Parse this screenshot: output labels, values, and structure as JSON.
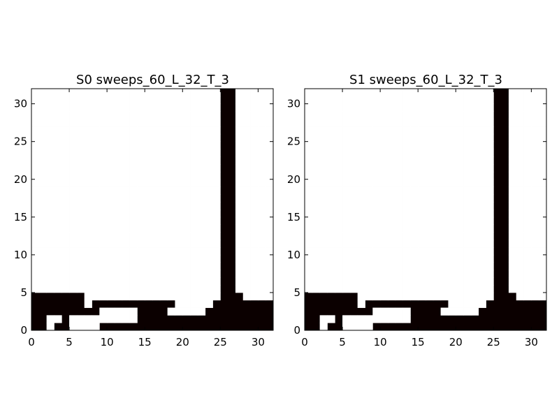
{
  "chart_data": [
    {
      "type": "heatmap",
      "title": "S0 sweeps_60_L_32_T_3",
      "xlabel": "",
      "ylabel": "",
      "xlim": [
        0,
        32
      ],
      "ylim": [
        0,
        32
      ],
      "xticks": [
        "0",
        "5",
        "10",
        "15",
        "20",
        "25",
        "30"
      ],
      "yticks": [
        "0",
        "5",
        "10",
        "15",
        "20",
        "25",
        "30"
      ],
      "colors": {
        "spin_up": "#ffffff",
        "spin_down": "#0b0000"
      },
      "origin": "lower",
      "grid": false,
      "rows": [
        "00100111100000000000000000000000",
        "00110111111111000000000000000000",
        "00000000011111000011111000000000",
        "00000001000000000001111100000000",
        "00000001111111111111111110001111",
        "11111111111111111111111110011111",
        "11111111111111111111111110011111",
        "11111111111111111111111110011111",
        "11111111111111111111111110011111",
        "11111111111111111111111110011111",
        "11111111111111111111111110011111",
        "11111111111111111111111110011111",
        "11111111111111111111111110011111",
        "11111111111111111111111110011111",
        "11111111111111111111111110011111",
        "11111111111111111111111110011111",
        "11111111111111111111111110011111",
        "11111111111111111111111110011111",
        "11111111111111111111111110011111",
        "11111111111111111111111110011111",
        "11111111111111111111111110011111",
        "11111111111111111111111110011111",
        "11111111111111111111111110011111",
        "11111111111111111111111110011111",
        "11111111111111111111111110011111",
        "11111111111111111111111110011111",
        "11111111111111111111111110011111",
        "11111111111111111111111110011111",
        "11111111111111111111111110011111",
        "11111111111111111111111110011111",
        "11111111111111111111111110011111",
        "11111111111111111111111110011111"
      ]
    },
    {
      "type": "heatmap",
      "title": "S1 sweeps_60_L_32_T_3",
      "xlabel": "",
      "ylabel": "",
      "xlim": [
        0,
        32
      ],
      "ylim": [
        0,
        32
      ],
      "xticks": [
        "0",
        "5",
        "10",
        "15",
        "20",
        "25",
        "30"
      ],
      "yticks": [
        "0",
        "5",
        "10",
        "15",
        "20",
        "25",
        "30"
      ],
      "colors": {
        "spin_up": "#ffffff",
        "spin_down": "#0b0000"
      },
      "origin": "lower",
      "grid": false,
      "rows": [
        "00100111100000000000000000000000",
        "00110111111111000000000000000000",
        "00000000011111000011111000000000",
        "00000001000000000001111100000000",
        "00000001111111111111111110001111",
        "11111111111111111111111110011111",
        "11111111111111111111111110011111",
        "11111111111111111111111110011111",
        "11111111111111111111111110011111",
        "11111111111111111111111110011111",
        "11111111111111111111111110011111",
        "11111111111111111111111110011111",
        "11111111111111111111111110011111",
        "11111111111111111111111110011111",
        "11111111111111111111111110011111",
        "11111111111111111111111110011111",
        "11111111111111111111111110011111",
        "11111111111111111111111110011111",
        "11111111111111111111111110011111",
        "11111111111111111111111110011111",
        "11111111111111111111111110011111",
        "11111111111111111111111110011111",
        "11111111111111111111111110011111",
        "11111111111111111111111110011111",
        "11111111111111111111111110011111",
        "11111111111111111111111110011111",
        "11111111111111111111111110011111",
        "11111111111111111111111110011111",
        "11111111111111111111111110011111",
        "11111111111111111111111110011111",
        "11111111111111111111111110011111",
        "11111111111111111111111110011111"
      ]
    }
  ]
}
